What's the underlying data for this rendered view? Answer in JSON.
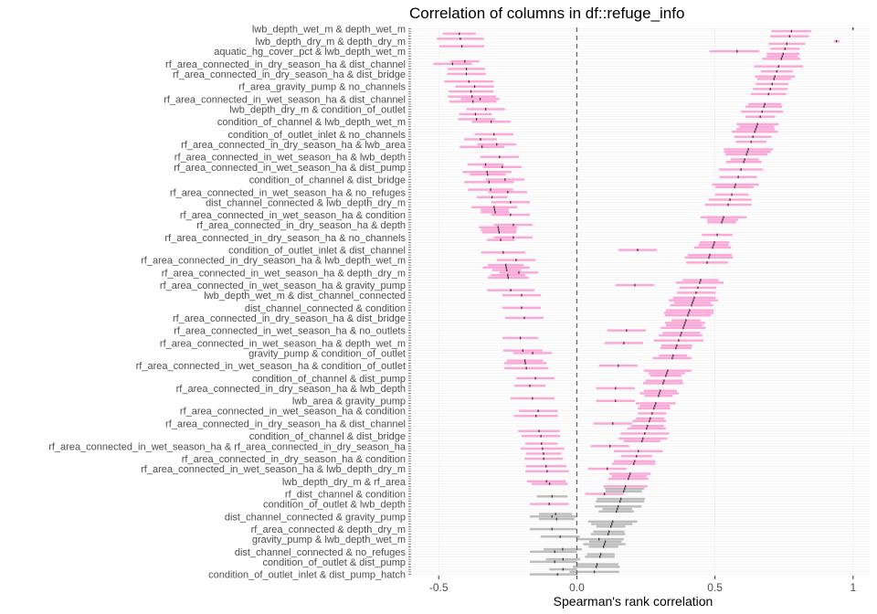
{
  "chart_data": {
    "type": "scatter",
    "title": "Correlation of columns in df::refuge_info",
    "xlabel": "Spearman's rank correlation",
    "ylabel": "",
    "xlim": [
      -0.6,
      1.06
    ],
    "x_ticks": [
      -0.5,
      0.0,
      0.5,
      1.0
    ],
    "x_tick_labels": [
      "-0.5",
      "0.0",
      "0.5",
      "1"
    ],
    "reference_line_x": 0,
    "colors": {
      "significant": "#f9a8d8",
      "not_significant": "#bdbdbd",
      "estimate": "#333333",
      "reference_line": "#666666",
      "gridline": "#ebebeb"
    },
    "label_rows": [
      {
        "label": "lwb_depth_wet_m & depth_wet_m",
        "estimate": 1.0,
        "low": 0.995,
        "high": 1.0,
        "significant": true
      },
      {
        "label": "lwb_depth_dry_m & depth_dry_m",
        "estimate": 0.94,
        "low": 0.93,
        "high": 0.95,
        "significant": true
      },
      {
        "label": "aquatic_hg_cover_pct & lwb_depth_wet_m",
        "estimate": 0.58,
        "low": 0.48,
        "high": 0.66,
        "significant": true
      },
      {
        "label": "rf_area_connected_in_dry_season_ha & dist_channel",
        "estimate": -0.45,
        "low": -0.52,
        "high": -0.38,
        "significant": true
      },
      {
        "label": "rf_area_connected_in_dry_season_ha & dist_bridge",
        "estimate": -0.4,
        "low": -0.47,
        "high": -0.33,
        "significant": true
      },
      {
        "label": "rf_area_gravity_pump & no_channels",
        "estimate": -0.37,
        "low": -0.44,
        "high": -0.3,
        "significant": true
      },
      {
        "label": "rf_area_connected_in_wet_season_ha & dist_channel",
        "estimate": -0.35,
        "low": -0.42,
        "high": -0.28,
        "significant": true
      },
      {
        "label": "lwb_depth_dry_m & condition_of_outlet",
        "estimate": -0.33,
        "low": -0.4,
        "high": -0.26,
        "significant": true
      },
      {
        "label": "condition_of_channel & lwb_depth_wet_m",
        "estimate": -0.31,
        "low": -0.38,
        "high": -0.24,
        "significant": true
      },
      {
        "label": "condition_of_outlet_inlet & no_channels",
        "estimate": -0.3,
        "low": -0.37,
        "high": -0.23,
        "significant": true
      },
      {
        "label": "rf_area_connected_in_dry_season_ha & lwb_area",
        "estimate": -0.29,
        "low": -0.36,
        "high": -0.22,
        "significant": true
      },
      {
        "label": "rf_area_connected_in_wet_season_ha & lwb_depth",
        "estimate": -0.28,
        "low": -0.35,
        "high": -0.21,
        "significant": true
      },
      {
        "label": "rf_area_connected_in_wet_season_ha & dist_pump",
        "estimate": -0.27,
        "low": -0.34,
        "high": -0.2,
        "significant": true
      },
      {
        "label": "condition_of_channel & dist_bridge",
        "estimate": -0.26,
        "low": -0.33,
        "high": -0.19,
        "significant": true
      },
      {
        "label": "rf_area_connected_in_wet_season_ha & no_refuges",
        "estimate": -0.25,
        "low": -0.32,
        "high": -0.18,
        "significant": true
      },
      {
        "label": "dist_channel_connected & lwb_depth_dry_m",
        "estimate": -0.24,
        "low": -0.31,
        "high": -0.17,
        "significant": true
      },
      {
        "label": "rf_area_connected_in_wet_season_ha & condition",
        "estimate": -0.24,
        "low": -0.31,
        "high": -0.17,
        "significant": true
      },
      {
        "label": "rf_area_connected_in_dry_season_ha & depth",
        "estimate": -0.23,
        "low": -0.3,
        "high": -0.16,
        "significant": true
      },
      {
        "label": "rf_area_connected_in_dry_season_ha & no_channels",
        "estimate": -0.23,
        "low": -0.3,
        "high": -0.16,
        "significant": true
      },
      {
        "label": "condition_of_outlet_inlet & dist_channel",
        "estimate": 0.22,
        "low": 0.15,
        "high": 0.29,
        "significant": true
      },
      {
        "label": "rf_area_connected_in_dry_season_ha & lwb_depth_wet_m",
        "estimate": -0.22,
        "low": -0.29,
        "high": -0.15,
        "significant": true
      },
      {
        "label": "rf_area_connected_in_wet_season_ha & depth_dry_m",
        "estimate": -0.21,
        "low": -0.28,
        "high": -0.14,
        "significant": true
      },
      {
        "label": "rf_area_connected_in_wet_season_ha & gravity_pump",
        "estimate": 0.21,
        "low": 0.14,
        "high": 0.28,
        "significant": true
      },
      {
        "label": "lwb_depth_wet_m & dist_channel_connected",
        "estimate": -0.2,
        "low": -0.27,
        "high": -0.13,
        "significant": true
      },
      {
        "label": "dist_channel_connected & condition",
        "estimate": -0.2,
        "low": -0.27,
        "high": -0.13,
        "significant": true
      },
      {
        "label": "rf_area_connected_in_dry_season_ha & dist_bridge",
        "estimate": -0.19,
        "low": -0.26,
        "high": -0.12,
        "significant": true
      },
      {
        "label": "rf_area_connected_in_wet_season_ha & no_outlets",
        "estimate": 0.18,
        "low": 0.11,
        "high": 0.25,
        "significant": true
      },
      {
        "label": "rf_area_connected_in_wet_season_ha & depth_wet_m",
        "estimate": 0.17,
        "low": 0.1,
        "high": 0.24,
        "significant": true
      },
      {
        "label": "gravity_pump & condition_of_outlet",
        "estimate": -0.16,
        "low": -0.23,
        "high": -0.09,
        "significant": true
      },
      {
        "label": "rf_area_connected_in_wet_season_ha & condition_of_outlet",
        "estimate": 0.15,
        "low": 0.08,
        "high": 0.22,
        "significant": true
      },
      {
        "label": "condition_of_channel & dist_pump",
        "estimate": -0.15,
        "low": -0.22,
        "high": -0.08,
        "significant": true
      },
      {
        "label": "rf_area_connected_in_dry_season_ha & lwb_depth",
        "estimate": 0.14,
        "low": 0.07,
        "high": 0.21,
        "significant": true
      },
      {
        "label": "lwb_area & gravity_pump",
        "estimate": 0.14,
        "low": 0.07,
        "high": 0.21,
        "significant": true
      },
      {
        "label": "rf_area_connected_in_wet_season_ha & condition",
        "estimate": -0.14,
        "low": -0.21,
        "high": -0.07,
        "significant": true
      },
      {
        "label": "rf_area_connected_in_dry_season_ha & dist_channel",
        "estimate": 0.13,
        "low": 0.06,
        "high": 0.2,
        "significant": true
      },
      {
        "label": "condition_of_channel & dist_bridge",
        "estimate": -0.13,
        "low": -0.2,
        "high": -0.06,
        "significant": true
      },
      {
        "label": "rf_area_connected_in_wet_season_ha & rf_area_connected_in_dry_season_ha",
        "estimate": 0.12,
        "low": 0.05,
        "high": 0.19,
        "significant": true
      },
      {
        "label": "rf_area_connected_in_dry_season_ha & condition",
        "estimate": -0.12,
        "low": -0.19,
        "high": -0.05,
        "significant": true
      },
      {
        "label": "rf_area_connected_in_wet_season_ha & lwb_depth_dry_m",
        "estimate": 0.11,
        "low": 0.04,
        "high": 0.18,
        "significant": true
      },
      {
        "label": "lwb_depth_dry_m & rf_area",
        "estimate": -0.11,
        "low": -0.18,
        "high": -0.04,
        "significant": true
      },
      {
        "label": "rf_dist_channel & condition",
        "estimate": 0.1,
        "low": 0.03,
        "high": 0.17,
        "significant": true
      },
      {
        "label": "condition_of_outlet & lwb_depth",
        "estimate": -0.1,
        "low": -0.17,
        "high": -0.03,
        "significant": true
      },
      {
        "label": "dist_channel_connected & gravity_pump",
        "estimate": -0.09,
        "low": -0.17,
        "high": 0.0,
        "significant": false
      },
      {
        "label": "rf_area_connected & depth_dry_m",
        "estimate": -0.09,
        "low": -0.17,
        "high": 0.0,
        "significant": false
      },
      {
        "label": "gravity_pump & lwb_depth_wet_m",
        "estimate": 0.08,
        "low": 0.0,
        "high": 0.17,
        "significant": false
      },
      {
        "label": "dist_channel_connected & no_refuges",
        "estimate": -0.08,
        "low": -0.17,
        "high": 0.0,
        "significant": false
      },
      {
        "label": "condition_of_outlet & dist_pump",
        "estimate": -0.08,
        "low": -0.17,
        "high": 0.0,
        "significant": false
      },
      {
        "label": "condition_of_outlet_inlet & dist_pump_hatch",
        "estimate": -0.07,
        "low": -0.17,
        "high": 0.0,
        "significant": false
      }
    ],
    "extra_point_count": 170,
    "label_rule": "labels stack densely on the y axis as in the original"
  }
}
